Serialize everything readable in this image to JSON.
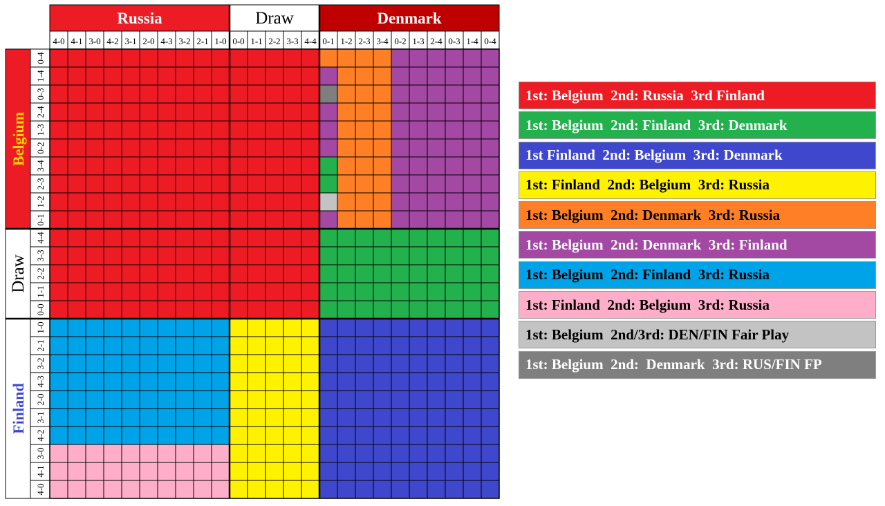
{
  "chart_data": {
    "type": "heatmap",
    "title": "",
    "top_groups": [
      {
        "label": "Russia",
        "color": "#ED1C24",
        "text_color": "#FFFFFF"
      },
      {
        "label": "Draw",
        "color": "#FFFFFF",
        "text_color": "#000000"
      },
      {
        "label": "Denmark",
        "color": "#C00000",
        "text_color": "#FFFFFF"
      }
    ],
    "left_groups": [
      {
        "label": "Belgium",
        "color": "#ED1C24",
        "text_color": "#FFD700"
      },
      {
        "label": "Draw",
        "color": "#FFFFFF",
        "text_color": "#000000"
      },
      {
        "label": "Finland",
        "color": "#FFFFFF",
        "text_color": "#3F48CC"
      }
    ],
    "columns": [
      "4-0",
      "4-1",
      "3-0",
      "4-2",
      "3-1",
      "2-0",
      "4-3",
      "3-2",
      "2-1",
      "1-0",
      "0-0",
      "1-1",
      "2-2",
      "3-3",
      "4-4",
      "0-1",
      "1-2",
      "2-3",
      "3-4",
      "0-2",
      "1-3",
      "2-4",
      "0-3",
      "1-4",
      "0-4"
    ],
    "rows": [
      "0-4",
      "1-4",
      "0-3",
      "2-4",
      "1-3",
      "0-2",
      "3-4",
      "2-3",
      "1-2",
      "0-1",
      "4-4",
      "3-3",
      "2-2",
      "1-1",
      "0-0",
      "1-0",
      "2-1",
      "3-2",
      "4-3",
      "2-0",
      "3-1",
      "4-2",
      "3-0",
      "4-1",
      "4-0"
    ],
    "outcomes": [
      {
        "key": "R",
        "label": "1st: Belgium  2nd: Russia  3rd Finland",
        "color": "#ED1C24",
        "text_color": "#FFFFFF"
      },
      {
        "key": "G",
        "label": "1st: Belgium  2nd: Finland  3rd: Denmark",
        "color": "#22B14C",
        "text_color": "#FFFFFF"
      },
      {
        "key": "B",
        "label": "1st Finland  2nd: Belgium  3rd: Denmark",
        "color": "#3F48CC",
        "text_color": "#FFFFFF"
      },
      {
        "key": "Y",
        "label": "1st: Finland  2nd: Belgium  3rd: Russia",
        "color": "#FFF200",
        "text_color": "#000000"
      },
      {
        "key": "O",
        "label": "1st: Belgium  2nd: Denmark  3rd: Russia",
        "color": "#FF7F27",
        "text_color": "#000000"
      },
      {
        "key": "P",
        "label": "1st: Belgium  2nd: Denmark  3rd: Finland",
        "color": "#A349A4",
        "text_color": "#FFFFFF"
      },
      {
        "key": "C",
        "label": "1st: Belgium  2nd: Finland  3rd: Russia",
        "color": "#00A2E8",
        "text_color": "#000000"
      },
      {
        "key": "K",
        "label": "1st: Finland  2nd: Belgium  3rd: Russia",
        "color": "#FFAEC9",
        "text_color": "#000000"
      },
      {
        "key": "L",
        "label": "1st: Belgium  2nd/3rd: DEN/FIN Fair Play",
        "color": "#C3C3C3",
        "text_color": "#000000"
      },
      {
        "key": "D",
        "label": "1st: Belgium  2nd:  Denmark  3rd: RUS/FIN FP",
        "color": "#7F7F7F",
        "text_color": "#FFFFFF"
      }
    ],
    "grid": [
      "RRRRRRRRRRRRRRROOOOPPPPPP",
      "RRRRRRRRRRRRRRRPOOOPPPPPP",
      "RRRRRRRRRRRRRRRDOOOPPPPPP",
      "RRRRRRRRRRRRRRRPOOOPPPPPP",
      "RRRRRRRRRRRRRRRPOOOPPPPPP",
      "RRRRRRRRRRRRRRRPOOOPPPPPP",
      "RRRRRRRRRRRRRRRGOOOPPPPPP",
      "RRRRRRRRRRRRRRRGOOOPPPPPP",
      "RRRRRRRRRRRRRRRLOOOPPPPPP",
      "RRRRRRRRRRRRRRRPOOOPPPPPP",
      "RRRRRRRRRRRRRRRGGGGGGGGGG",
      "RRRRRRRRRRRRRRRGGGGGGGGGG",
      "RRRRRRRRRRRRRRRGGGGGGGGGG",
      "RRRRRRRRRRRRRRRGGGGGGGGGG",
      "RRRRRRRRRRRRRRRGGGGGGGGGG",
      "CCCCCCCCCCYYYYYBBBBBBBBBB",
      "CCCCCCCCCCYYYYYBBBBBBBBBB",
      "CCCCCCCCCCYYYYYBBBBBBBBBB",
      "CCCCCCCCCCYYYYYBBBBBBBBBB",
      "CCCCCCCCCCYYYYYBBBBBBBBBB",
      "CCCCCCCCCCYYYYYBBBBBBBBBB",
      "CCCCCCCCCCYYYYYBBBBBBBBBB",
      "KKKKKKKKKKYYYYYBBBBBBBBBB",
      "KKKKKKKKKKYYYYYBBBBBBBBBB",
      "KKKKKKKKKKYYYYYBBBBBBBBBB"
    ]
  }
}
